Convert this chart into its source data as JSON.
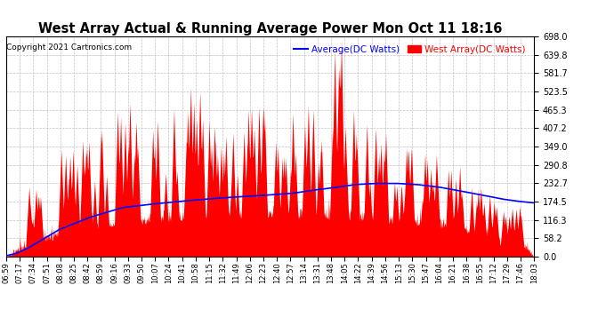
{
  "title": "West Array Actual & Running Average Power Mon Oct 11 18:16",
  "copyright": "Copyright 2021 Cartronics.com",
  "legend_avg": "Average(DC Watts)",
  "legend_west": "West Array(DC Watts)",
  "ymin": 0.0,
  "ymax": 698.0,
  "yticks": [
    0.0,
    58.2,
    116.3,
    174.5,
    232.7,
    290.8,
    349.0,
    407.2,
    465.3,
    523.5,
    581.7,
    639.8,
    698.0
  ],
  "bg_color": "#ffffff",
  "grid_color": "#bbbbbb",
  "fill_color": "#ff0000",
  "avg_line_color": "#0000ff",
  "title_color": "#000000",
  "copyright_color": "#000000",
  "legend_avg_color": "#0000ff",
  "legend_west_color": "#ff0000",
  "xtick_labels": [
    "06:59",
    "07:17",
    "07:34",
    "07:51",
    "08:08",
    "08:25",
    "08:42",
    "08:59",
    "09:16",
    "09:33",
    "09:50",
    "10:07",
    "10:24",
    "10:41",
    "10:58",
    "11:15",
    "11:32",
    "11:49",
    "12:06",
    "12:23",
    "12:40",
    "12:57",
    "13:14",
    "13:31",
    "13:48",
    "14:05",
    "14:22",
    "14:39",
    "14:56",
    "15:13",
    "15:30",
    "15:47",
    "16:04",
    "16:21",
    "16:38",
    "16:55",
    "17:12",
    "17:29",
    "17:46",
    "18:03"
  ],
  "avg_points": [
    [
      0,
      2
    ],
    [
      0.02,
      10
    ],
    [
      0.04,
      25
    ],
    [
      0.06,
      45
    ],
    [
      0.08,
      65
    ],
    [
      0.1,
      85
    ],
    [
      0.13,
      105
    ],
    [
      0.16,
      125
    ],
    [
      0.19,
      140
    ],
    [
      0.22,
      155
    ],
    [
      0.27,
      165
    ],
    [
      0.33,
      175
    ],
    [
      0.4,
      185
    ],
    [
      0.47,
      192
    ],
    [
      0.54,
      200
    ],
    [
      0.58,
      210
    ],
    [
      0.62,
      218
    ],
    [
      0.66,
      228
    ],
    [
      0.7,
      232
    ],
    [
      0.74,
      232
    ],
    [
      0.78,
      228
    ],
    [
      0.82,
      220
    ],
    [
      0.86,
      208
    ],
    [
      0.9,
      195
    ],
    [
      0.94,
      182
    ],
    [
      0.97,
      175
    ],
    [
      1.0,
      170
    ]
  ]
}
